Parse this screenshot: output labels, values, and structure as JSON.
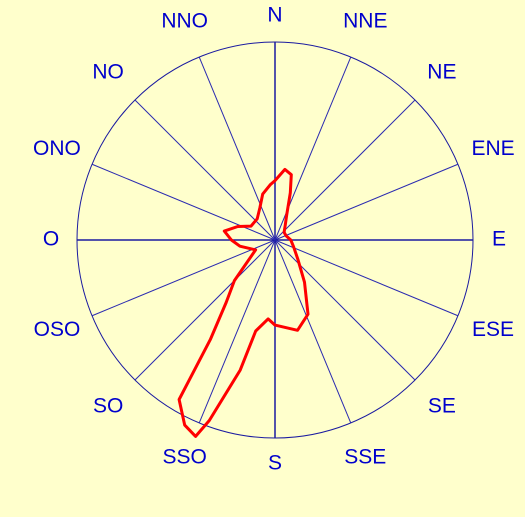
{
  "chart_data": {
    "type": "polar-line",
    "categories": [
      "N",
      "NNE",
      "NE",
      "ENE",
      "E",
      "ESE",
      "SE",
      "SSE",
      "S",
      "SSO",
      "SO",
      "OSO",
      "O",
      "ONO",
      "NO",
      "NNO"
    ],
    "rlim": [
      0,
      100
    ],
    "series": [
      {
        "color": "#ff0000",
        "x": [
          0,
          8,
          14,
          18,
          25,
          35,
          50,
          70,
          90,
          110,
          130,
          145,
          156,
          166,
          180,
          185,
          192,
          195,
          200,
          202,
          206,
          211,
          213,
          218,
          225,
          243,
          260,
          270,
          280,
          290,
          300,
          320,
          335,
          345,
          355
        ],
        "values": [
          30,
          36,
          34,
          25,
          14,
          9,
          6,
          6,
          8,
          10,
          15,
          26,
          41,
          47,
          43,
          40,
          47,
          68,
          97,
          107,
          104,
          94,
          60,
          40,
          29,
          11,
          18,
          22,
          26,
          20,
          14,
          14,
          18,
          24,
          28
        ]
      }
    ]
  }
}
